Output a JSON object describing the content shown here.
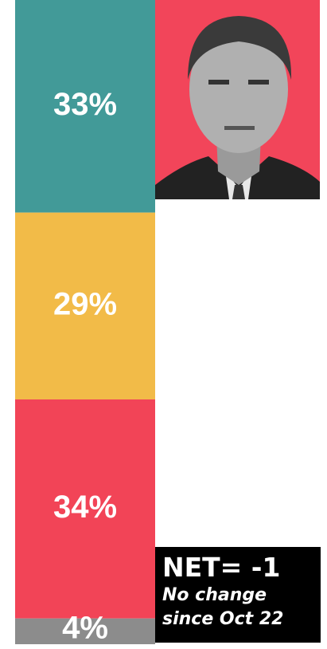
{
  "chart_data": {
    "type": "stacked_bar",
    "values": [
      33,
      29,
      34,
      4
    ],
    "value_labels": [
      "33%",
      "29%",
      "34%",
      "4%"
    ],
    "colors": [
      "#429a98",
      "#f2bb48",
      "#f24457",
      "#8c8c8c"
    ],
    "annotations": [
      "NET= -1",
      "No change since Oct 22"
    ]
  }
}
